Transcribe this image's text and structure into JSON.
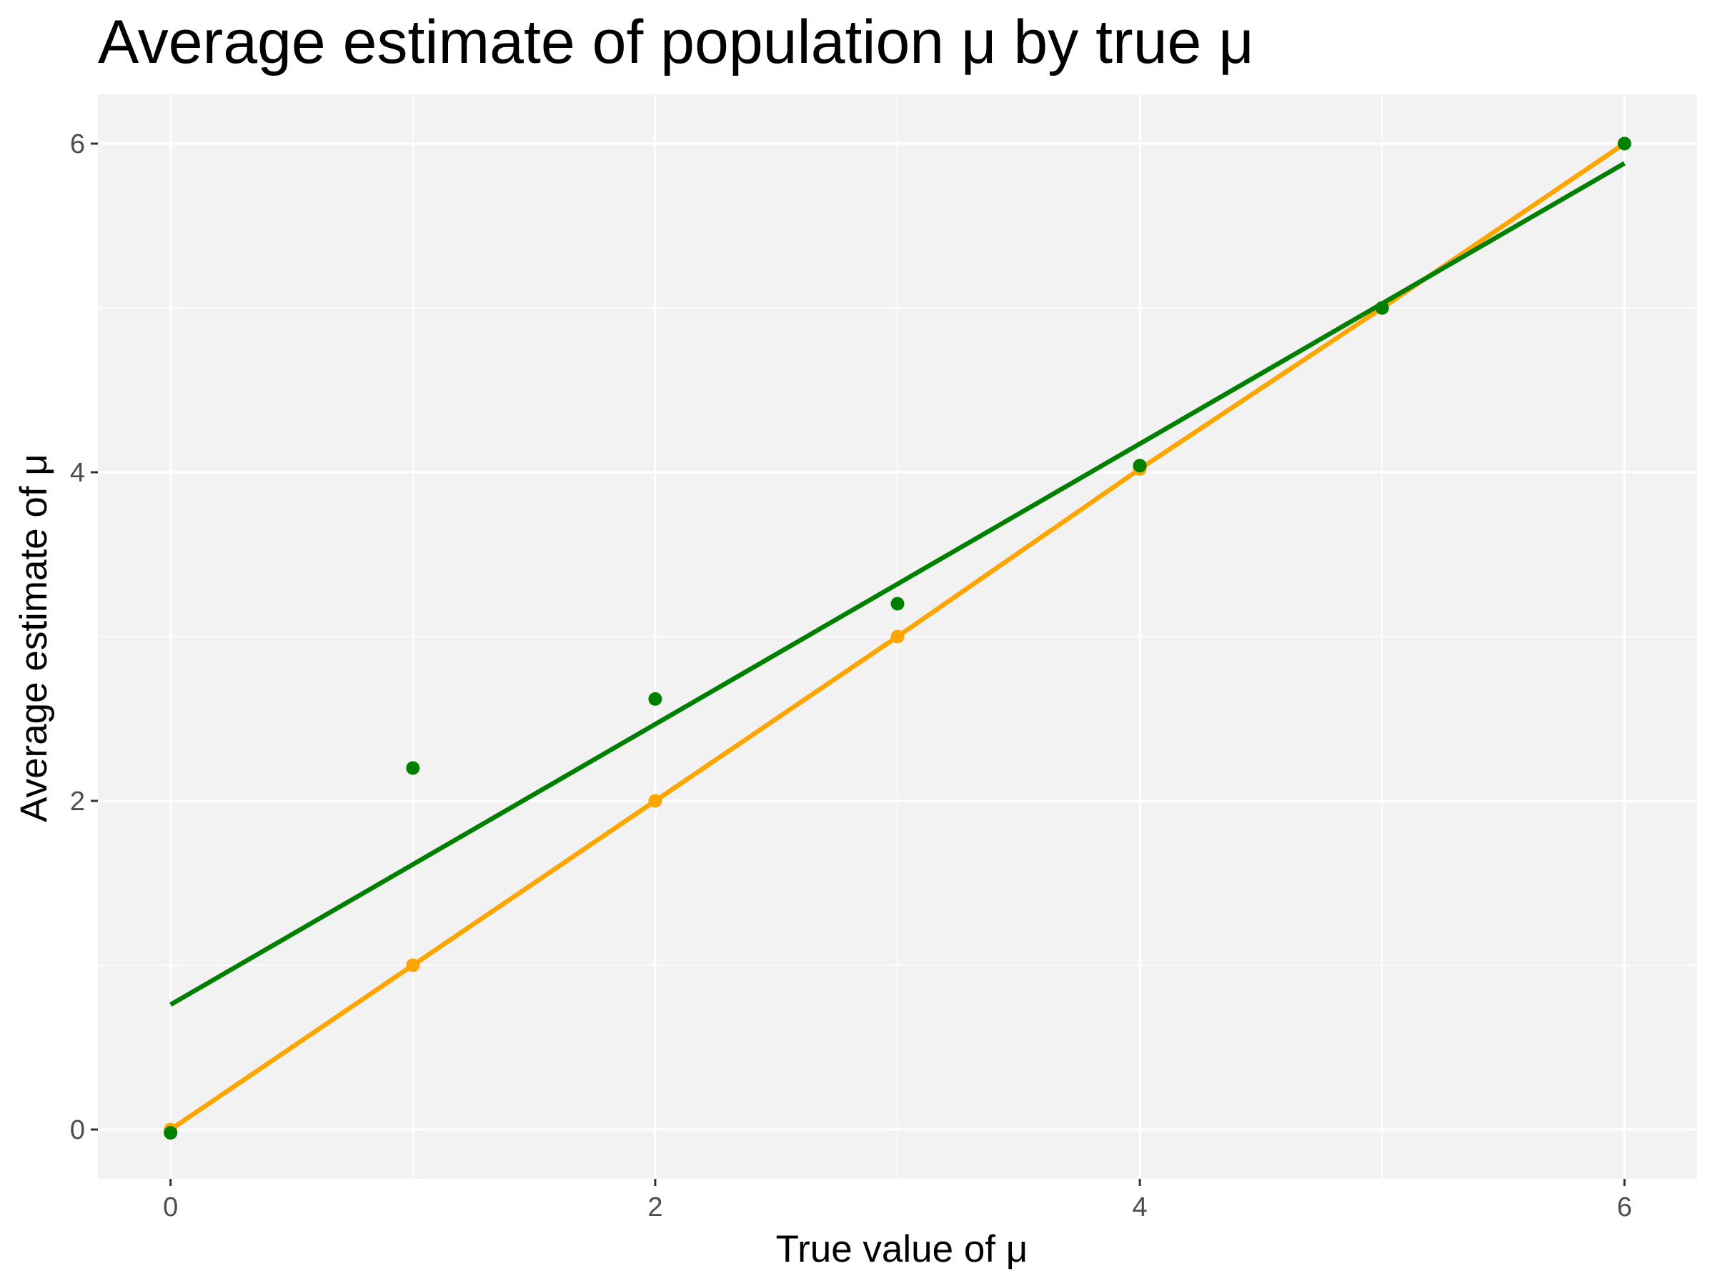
{
  "chart_data": {
    "type": "line",
    "title": "Average estimate of population μ by true μ",
    "xlabel": "True value of μ",
    "ylabel": "Average estimate of μ",
    "xlim": [
      -0.3,
      6.3
    ],
    "ylim": [
      -0.3,
      6.3
    ],
    "x_ticks": [
      0,
      2,
      4,
      6
    ],
    "y_ticks": [
      0,
      2,
      4,
      6
    ],
    "x_minor_ticks": [
      1,
      3,
      5
    ],
    "y_minor_ticks": [
      1,
      3,
      5
    ],
    "grid": true,
    "panel_background": "#f2f2f2",
    "grid_color": "#ffffff",
    "series": [
      {
        "color": "#ffa500",
        "style": "line+points",
        "x": [
          0,
          1,
          2,
          3,
          4,
          5,
          6
        ],
        "y": [
          0.0,
          1.0,
          2.0,
          3.0,
          4.02,
          5.0,
          6.0
        ]
      },
      {
        "color": "#008000",
        "style": "points",
        "x": [
          0,
          1,
          2,
          3,
          4,
          5,
          6
        ],
        "y": [
          -0.02,
          2.2,
          2.62,
          3.2,
          4.04,
          5.0,
          6.0
        ]
      },
      {
        "color": "#008000",
        "style": "fit-line",
        "x": [
          0,
          6
        ],
        "y": [
          0.76,
          5.88
        ]
      }
    ]
  }
}
